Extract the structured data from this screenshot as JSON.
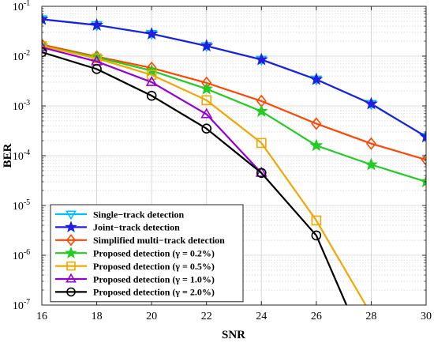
{
  "chart_data": {
    "type": "line",
    "title": "",
    "xlabel": "SNR",
    "ylabel": "BER",
    "xlim": [
      16,
      30
    ],
    "ylim": [
      1e-07,
      0.1
    ],
    "yscale": "log",
    "grid": true,
    "legend_position": "bottom-left",
    "x_ticks": [
      "16",
      "18",
      "20",
      "22",
      "24",
      "26",
      "28",
      "30"
    ],
    "y_ticks": [
      {
        "base": "10",
        "exp": "-1",
        "value": 0.1
      },
      {
        "base": "10",
        "exp": "-2",
        "value": 0.01
      },
      {
        "base": "10",
        "exp": "-3",
        "value": 0.001
      },
      {
        "base": "10",
        "exp": "-4",
        "value": 0.0001
      },
      {
        "base": "10",
        "exp": "-5",
        "value": 1e-05
      },
      {
        "base": "10",
        "exp": "-6",
        "value": 1e-06
      },
      {
        "base": "10",
        "exp": "-7",
        "value": 1e-07
      }
    ],
    "x": [
      16,
      18,
      20,
      22,
      24,
      26,
      28,
      30
    ],
    "series": [
      {
        "name": "Single−track detection",
        "color": "#00BFFF",
        "marker": "triangle-down",
        "x": [
          16,
          18,
          20,
          22,
          24,
          26,
          28,
          30
        ],
        "values": [
          0.055,
          0.042,
          0.028,
          0.016,
          0.0085,
          0.0034,
          0.0011,
          0.00024
        ]
      },
      {
        "name": "Joint−track detection",
        "color": "#1F1FE0",
        "marker": "star",
        "x": [
          16,
          18,
          20,
          22,
          24,
          26,
          28,
          30
        ],
        "values": [
          0.055,
          0.042,
          0.028,
          0.016,
          0.0085,
          0.0034,
          0.0011,
          0.00024
        ]
      },
      {
        "name": "Simplified multi−track detection",
        "color": "#FF4500",
        "marker": "diamond",
        "x": [
          16,
          18,
          20,
          22,
          24,
          26,
          28,
          30
        ],
        "values": [
          0.017,
          0.0098,
          0.0058,
          0.0029,
          0.00125,
          0.00044,
          0.000175,
          8.3e-05
        ]
      },
      {
        "name": "Proposed detection (γ = 0.2%)",
        "color": "#22CC22",
        "marker": "star",
        "x": [
          16,
          18,
          20,
          22,
          24,
          26,
          28,
          30
        ],
        "values": [
          0.016,
          0.0095,
          0.0051,
          0.0022,
          0.00078,
          0.00016,
          6.6e-05,
          3e-05
        ]
      },
      {
        "name": "Proposed detection (γ = 0.5%)",
        "color": "#F0A800",
        "marker": "square",
        "x": [
          16,
          18,
          20,
          22,
          24,
          26,
          27.8
        ],
        "values": [
          0.016,
          0.009,
          0.0042,
          0.0013,
          0.00018,
          5e-06,
          1e-07
        ]
      },
      {
        "name": "Proposed detection (γ = 1.0%)",
        "color": "#9400D3",
        "marker": "triangle-up",
        "x": [
          16,
          18,
          20,
          22,
          24
        ],
        "values": [
          0.015,
          0.0078,
          0.003,
          0.00068,
          4.5e-05
        ]
      },
      {
        "name": "Proposed detection (γ = 2.0%)",
        "color": "#000000",
        "marker": "circle",
        "x": [
          16,
          18,
          20,
          22,
          24,
          26,
          27.1
        ],
        "values": [
          0.012,
          0.0055,
          0.0016,
          0.00035,
          4.5e-05,
          2.5e-06,
          1e-07
        ]
      }
    ]
  }
}
